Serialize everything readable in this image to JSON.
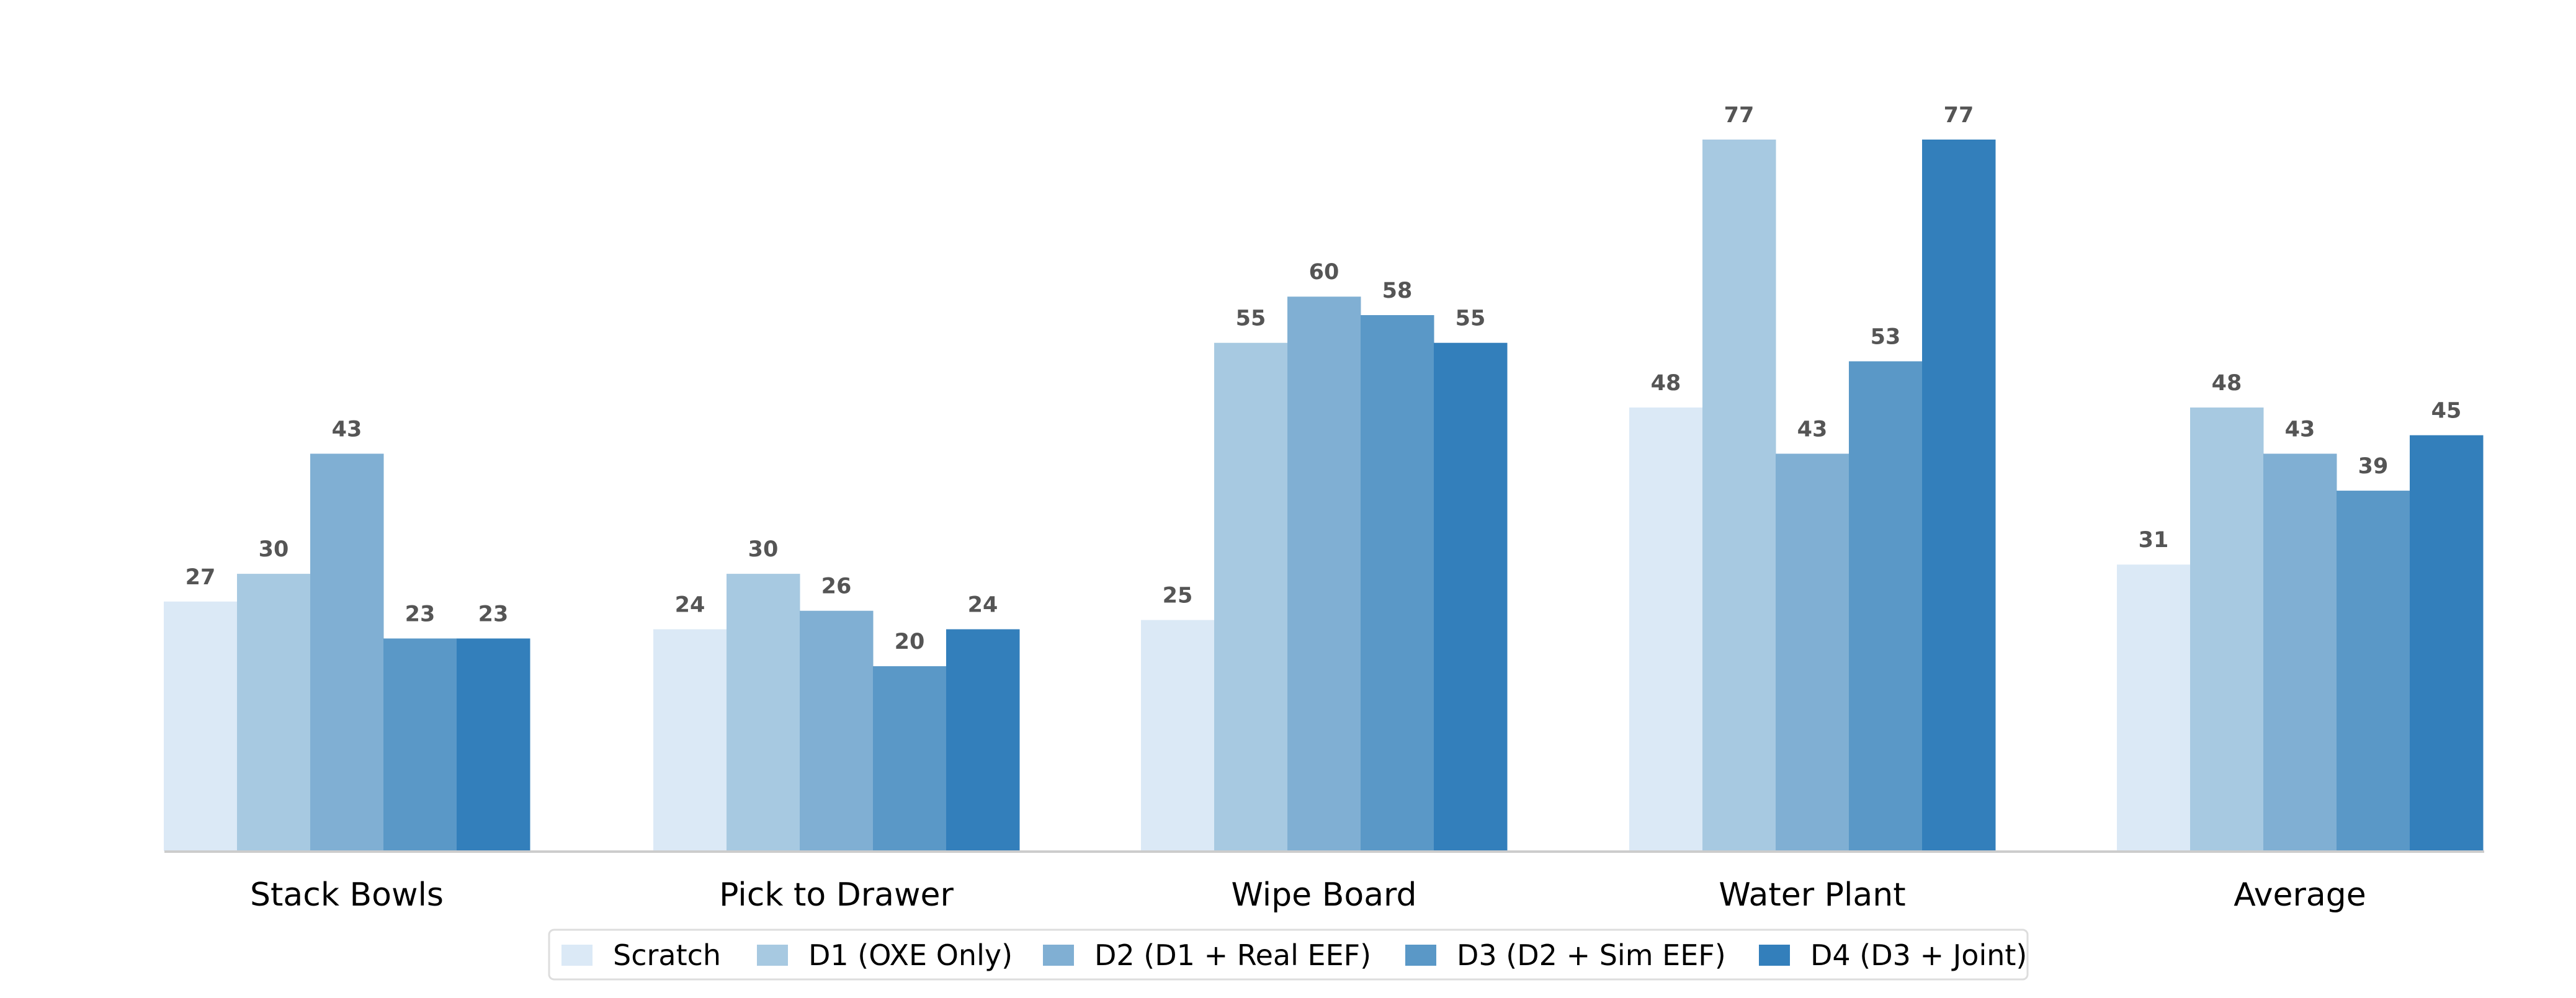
{
  "chart_data": {
    "type": "bar",
    "title": "",
    "xlabel": "",
    "ylabel": "",
    "ylim": [
      0,
      77
    ],
    "grid": false,
    "legend_placement": "bottom-center",
    "categories": [
      "Stack Bowls",
      "Pick to Drawer",
      "Wipe Board",
      "Water Plant",
      "Average"
    ],
    "series": [
      {
        "name": "Scratch",
        "color": "#dbe9f6",
        "values": [
          27,
          24,
          25,
          48,
          31
        ]
      },
      {
        "name": "D1 (OXE Only)",
        "color": "#a7c9e1",
        "values": [
          30,
          30,
          55,
          77,
          48
        ]
      },
      {
        "name": "D2 (D1 + Real EEF)",
        "color": "#80afd3",
        "values": [
          43,
          26,
          60,
          43,
          43
        ]
      },
      {
        "name": "D3 (D2 + Sim EEF)",
        "color": "#5a98c7",
        "values": [
          23,
          20,
          58,
          53,
          39
        ]
      },
      {
        "name": "D4 (D3 + Joint)",
        "color": "#337fbb",
        "values": [
          23,
          24,
          55,
          77,
          45
        ]
      }
    ]
  }
}
